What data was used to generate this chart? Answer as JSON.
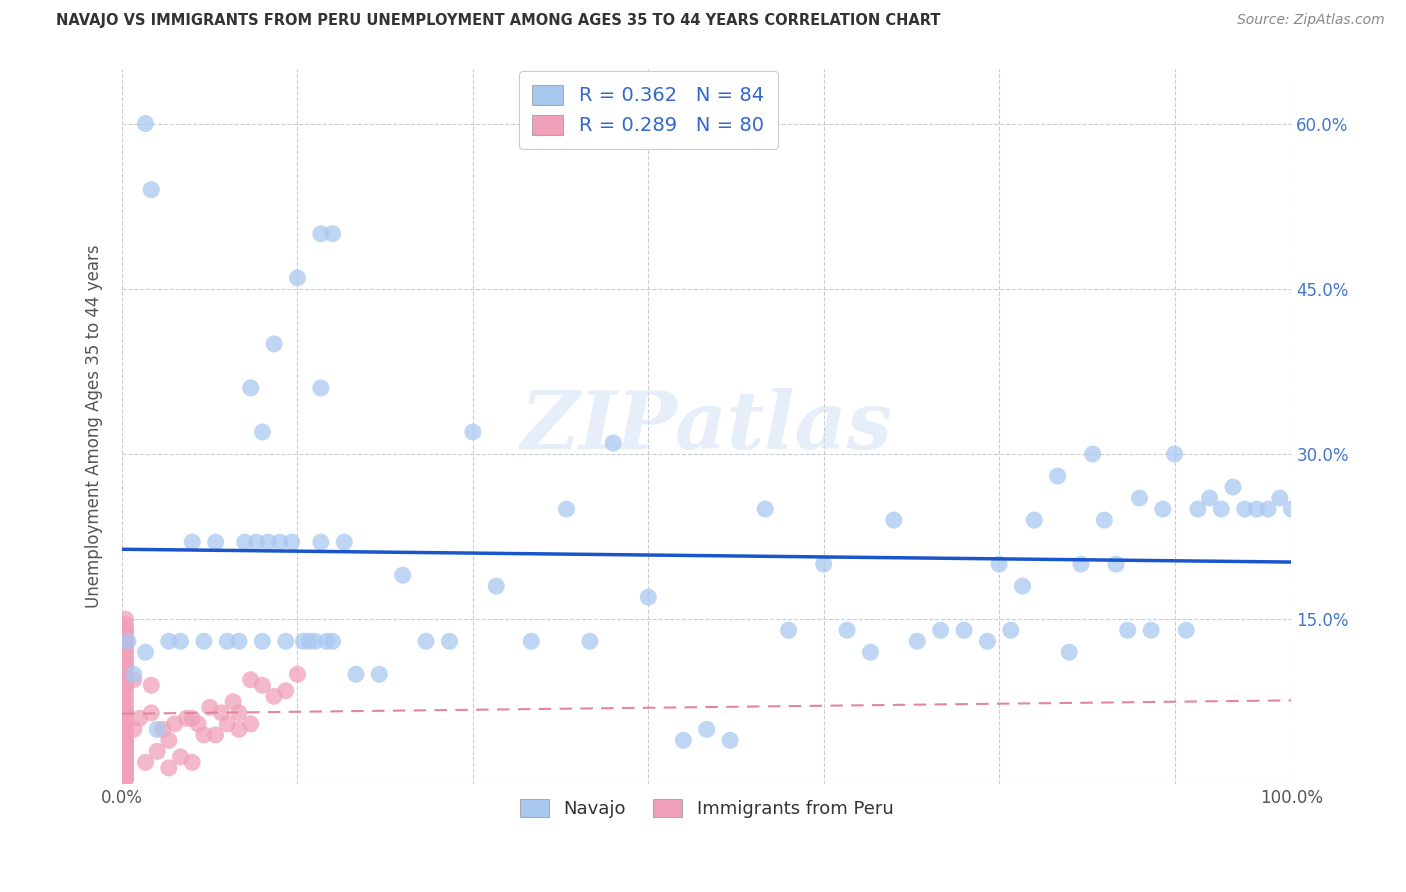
{
  "title": "NAVAJO VS IMMIGRANTS FROM PERU UNEMPLOYMENT AMONG AGES 35 TO 44 YEARS CORRELATION CHART",
  "source": "Source: ZipAtlas.com",
  "ylabel": "Unemployment Among Ages 35 to 44 years",
  "xlim": [
    0.0,
    1.0
  ],
  "ylim": [
    0.0,
    0.65
  ],
  "navajo_color": "#a8c8f0",
  "peru_color": "#f0a0b8",
  "navajo_R": 0.362,
  "navajo_N": 84,
  "peru_R": 0.289,
  "peru_N": 80,
  "legend_text_color": "#3366cc",
  "regression_navajo_color": "#1a55cc",
  "regression_peru_color": "#e08898",
  "watermark": "ZIPatlas",
  "navajo_x": [
    0.005,
    0.01,
    0.02,
    0.03,
    0.04,
    0.05,
    0.06,
    0.07,
    0.08,
    0.09,
    0.1,
    0.105,
    0.11,
    0.115,
    0.12,
    0.125,
    0.13,
    0.135,
    0.14,
    0.145,
    0.15,
    0.155,
    0.16,
    0.165,
    0.17,
    0.175,
    0.18,
    0.19,
    0.2,
    0.22,
    0.24,
    0.26,
    0.28,
    0.3,
    0.32,
    0.35,
    0.38,
    0.4,
    0.42,
    0.45,
    0.48,
    0.5,
    0.52,
    0.55,
    0.57,
    0.6,
    0.62,
    0.64,
    0.66,
    0.68,
    0.7,
    0.72,
    0.74,
    0.75,
    0.76,
    0.77,
    0.78,
    0.8,
    0.81,
    0.82,
    0.83,
    0.84,
    0.85,
    0.86,
    0.87,
    0.88,
    0.89,
    0.9,
    0.91,
    0.92,
    0.93,
    0.94,
    0.95,
    0.96,
    0.97,
    0.98,
    0.99,
    1.0,
    0.02,
    0.025,
    0.12,
    0.17,
    0.17,
    0.18
  ],
  "navajo_y": [
    0.13,
    0.1,
    0.12,
    0.05,
    0.13,
    0.13,
    0.22,
    0.13,
    0.22,
    0.13,
    0.13,
    0.22,
    0.36,
    0.22,
    0.13,
    0.22,
    0.4,
    0.22,
    0.13,
    0.22,
    0.46,
    0.13,
    0.13,
    0.13,
    0.36,
    0.13,
    0.13,
    0.22,
    0.1,
    0.1,
    0.19,
    0.13,
    0.13,
    0.32,
    0.18,
    0.13,
    0.25,
    0.13,
    0.31,
    0.17,
    0.04,
    0.05,
    0.04,
    0.25,
    0.14,
    0.2,
    0.14,
    0.12,
    0.24,
    0.13,
    0.14,
    0.14,
    0.13,
    0.2,
    0.14,
    0.18,
    0.24,
    0.28,
    0.12,
    0.2,
    0.3,
    0.24,
    0.2,
    0.14,
    0.26,
    0.14,
    0.25,
    0.3,
    0.14,
    0.25,
    0.26,
    0.25,
    0.27,
    0.25,
    0.25,
    0.25,
    0.26,
    0.25,
    0.6,
    0.54,
    0.32,
    0.5,
    0.22,
    0.5
  ],
  "peru_x": [
    0.003,
    0.003,
    0.003,
    0.003,
    0.003,
    0.003,
    0.003,
    0.003,
    0.003,
    0.003,
    0.003,
    0.003,
    0.003,
    0.003,
    0.003,
    0.003,
    0.003,
    0.003,
    0.003,
    0.003,
    0.003,
    0.003,
    0.003,
    0.003,
    0.003,
    0.003,
    0.003,
    0.003,
    0.003,
    0.003,
    0.003,
    0.003,
    0.003,
    0.003,
    0.003,
    0.003,
    0.003,
    0.003,
    0.003,
    0.003,
    0.003,
    0.003,
    0.003,
    0.003,
    0.003,
    0.003,
    0.003,
    0.003,
    0.003,
    0.003,
    0.01,
    0.01,
    0.015,
    0.02,
    0.025,
    0.025,
    0.03,
    0.035,
    0.04,
    0.04,
    0.045,
    0.05,
    0.055,
    0.06,
    0.06,
    0.065,
    0.07,
    0.075,
    0.08,
    0.085,
    0.09,
    0.095,
    0.1,
    0.1,
    0.11,
    0.11,
    0.12,
    0.13,
    0.14,
    0.15
  ],
  "peru_y": [
    0.005,
    0.005,
    0.008,
    0.01,
    0.01,
    0.015,
    0.015,
    0.02,
    0.02,
    0.025,
    0.025,
    0.03,
    0.03,
    0.035,
    0.04,
    0.04,
    0.045,
    0.05,
    0.055,
    0.06,
    0.065,
    0.065,
    0.07,
    0.075,
    0.08,
    0.085,
    0.09,
    0.09,
    0.095,
    0.1,
    0.1,
    0.105,
    0.11,
    0.11,
    0.115,
    0.12,
    0.12,
    0.125,
    0.13,
    0.13,
    0.135,
    0.14,
    0.14,
    0.145,
    0.15,
    0.022,
    0.027,
    0.032,
    0.038,
    0.042,
    0.05,
    0.095,
    0.06,
    0.02,
    0.065,
    0.09,
    0.03,
    0.05,
    0.015,
    0.04,
    0.055,
    0.025,
    0.06,
    0.02,
    0.06,
    0.055,
    0.045,
    0.07,
    0.045,
    0.065,
    0.055,
    0.075,
    0.05,
    0.065,
    0.055,
    0.095,
    0.09,
    0.08,
    0.085,
    0.1
  ]
}
